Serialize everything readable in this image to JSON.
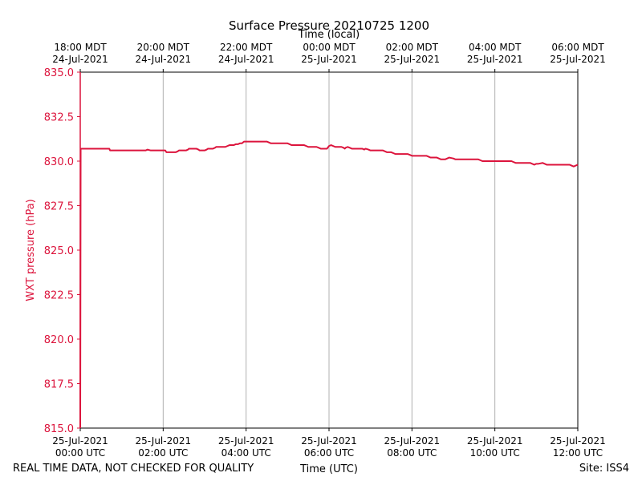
{
  "chart_data": {
    "type": "line",
    "title": "Surface Pressure 20210725 1200",
    "xlabel": "Time (UTC)",
    "x2label": "Time (local)",
    "ylabel": "WXT pressure (hPa)",
    "ylim": [
      815.0,
      835.0
    ],
    "xlim_hours_utc": [
      0,
      12
    ],
    "yticks": [
      "815.0",
      "817.5",
      "820.0",
      "822.5",
      "825.0",
      "827.5",
      "830.0",
      "832.5",
      "835.0"
    ],
    "yticks_values": [
      815.0,
      817.5,
      820.0,
      822.5,
      825.0,
      827.5,
      830.0,
      832.5,
      835.0
    ],
    "xticks": [
      {
        "hour": 0,
        "line1": "25-Jul-2021",
        "line2": "00:00 UTC"
      },
      {
        "hour": 2,
        "line1": "25-Jul-2021",
        "line2": "02:00 UTC"
      },
      {
        "hour": 4,
        "line1": "25-Jul-2021",
        "line2": "04:00 UTC"
      },
      {
        "hour": 6,
        "line1": "25-Jul-2021",
        "line2": "06:00 UTC"
      },
      {
        "hour": 8,
        "line1": "25-Jul-2021",
        "line2": "08:00 UTC"
      },
      {
        "hour": 10,
        "line1": "25-Jul-2021",
        "line2": "10:00 UTC"
      },
      {
        "hour": 12,
        "line1": "25-Jul-2021",
        "line2": "12:00 UTC"
      }
    ],
    "x2ticks": [
      {
        "hour": 0,
        "line1": "18:00 MDT",
        "line2": "24-Jul-2021"
      },
      {
        "hour": 2,
        "line1": "20:00 MDT",
        "line2": "24-Jul-2021"
      },
      {
        "hour": 4,
        "line1": "22:00 MDT",
        "line2": "24-Jul-2021"
      },
      {
        "hour": 6,
        "line1": "00:00 MDT",
        "line2": "25-Jul-2021"
      },
      {
        "hour": 8,
        "line1": "02:00 MDT",
        "line2": "25-Jul-2021"
      },
      {
        "hour": 10,
        "line1": "04:00 MDT",
        "line2": "25-Jul-2021"
      },
      {
        "hour": 12,
        "line1": "06:00 MDT",
        "line2": "25-Jul-2021"
      }
    ],
    "grid": "vertical",
    "series": [
      {
        "name": "WXT pressure",
        "color": "#dc143c",
        "x": [
          0.0,
          0.01,
          0.02,
          0.05,
          0.1,
          0.4,
          0.7,
          0.72,
          1.0,
          1.5,
          1.58,
          1.62,
          1.7,
          2.0,
          2.05,
          2.08,
          2.3,
          2.35,
          2.38,
          2.55,
          2.6,
          2.62,
          2.8,
          2.85,
          2.88,
          3.0,
          3.05,
          3.08,
          3.2,
          3.25,
          3.28,
          3.5,
          3.55,
          3.6,
          3.7,
          3.75,
          3.8,
          3.85,
          3.9,
          3.95,
          4.5,
          4.55,
          4.6,
          5.0,
          5.05,
          5.1,
          5.4,
          5.45,
          5.5,
          5.7,
          5.75,
          5.8,
          5.95,
          6.0,
          6.05,
          6.1,
          6.15,
          6.3,
          6.35,
          6.38,
          6.4,
          6.45,
          6.5,
          6.55,
          6.8,
          6.85,
          6.88,
          6.95,
          7.0,
          7.05,
          7.3,
          7.35,
          7.4,
          7.5,
          7.55,
          7.6,
          7.9,
          7.95,
          8.0,
          8.35,
          8.4,
          8.45,
          8.6,
          8.65,
          8.7,
          8.8,
          8.85,
          8.9,
          9.0,
          9.05,
          9.1,
          9.6,
          9.65,
          9.7,
          10.4,
          10.45,
          10.5,
          10.85,
          10.9,
          10.95,
          11.0,
          11.05,
          11.15,
          11.2,
          11.25,
          11.8,
          11.85,
          11.9,
          11.95,
          12.0
        ],
        "values": [
          815.0,
          830.7,
          830.7,
          830.7,
          830.7,
          830.7,
          830.7,
          830.6,
          830.6,
          830.6,
          830.6,
          830.65,
          830.6,
          830.6,
          830.6,
          830.5,
          830.5,
          830.55,
          830.6,
          830.6,
          830.65,
          830.7,
          830.7,
          830.65,
          830.6,
          830.6,
          830.65,
          830.7,
          830.7,
          830.75,
          830.8,
          830.8,
          830.85,
          830.9,
          830.9,
          830.95,
          830.95,
          831.0,
          831.0,
          831.1,
          831.1,
          831.05,
          831.0,
          831.0,
          830.95,
          830.9,
          830.9,
          830.85,
          830.8,
          830.8,
          830.75,
          830.7,
          830.7,
          830.85,
          830.9,
          830.85,
          830.8,
          830.8,
          830.75,
          830.7,
          830.75,
          830.8,
          830.75,
          830.7,
          830.7,
          830.65,
          830.7,
          830.65,
          830.6,
          830.6,
          830.6,
          830.55,
          830.5,
          830.5,
          830.45,
          830.4,
          830.4,
          830.35,
          830.3,
          830.3,
          830.25,
          830.2,
          830.2,
          830.15,
          830.1,
          830.1,
          830.15,
          830.2,
          830.15,
          830.1,
          830.1,
          830.1,
          830.05,
          830.0,
          830.0,
          829.95,
          829.9,
          829.9,
          829.85,
          829.8,
          829.85,
          829.85,
          829.9,
          829.85,
          829.8,
          829.8,
          829.75,
          829.7,
          829.75,
          829.8
        ]
      }
    ]
  },
  "footer": {
    "left": "REAL TIME DATA, NOT CHECKED FOR QUALITY",
    "center": "Time (UTC)",
    "right": "Site: ISS4"
  }
}
